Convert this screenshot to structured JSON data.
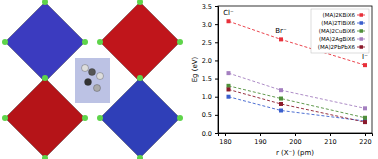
{
  "chart_data": {
    "type": "line",
    "x_label": "r (X⁻) (pm)",
    "y_label": "Eg (eV)",
    "x": [
      181,
      196,
      220
    ],
    "xlim": [
      178,
      222
    ],
    "xticks": [
      180,
      190,
      200,
      210,
      220
    ],
    "ylim": [
      0,
      3.5
    ],
    "yticks": [
      0.0,
      0.5,
      1.0,
      1.5,
      2.0,
      2.5,
      3.0,
      3.5
    ],
    "marker": "square",
    "line_style": "dashed",
    "legend": "upper right",
    "series": [
      {
        "name": "(MA)2KBiX6",
        "color": "#e8303a",
        "values": [
          3.08,
          2.58,
          1.87
        ]
      },
      {
        "name": "(MA)2TlBiX6",
        "color": "#3a5fcd",
        "values": [
          1.0,
          0.62,
          0.33
        ]
      },
      {
        "name": "(MA)2CuBiX6",
        "color": "#4f8f3a",
        "values": [
          1.3,
          0.95,
          0.42
        ]
      },
      {
        "name": "(MA)2AgBiX6",
        "color": "#a47fc0",
        "values": [
          1.65,
          1.18,
          0.68
        ]
      },
      {
        "name": "(MA)2PbPbX6",
        "color": "#8b1a2b",
        "values": [
          1.2,
          0.8,
          0.3
        ]
      }
    ],
    "annotations": [
      {
        "text": "Cl⁻",
        "x": 181,
        "y": 3.25
      },
      {
        "text": "Br⁻",
        "x": 196,
        "y": 2.75
      },
      {
        "text": "I⁻",
        "x": 220,
        "y": 2.05
      }
    ]
  }
}
